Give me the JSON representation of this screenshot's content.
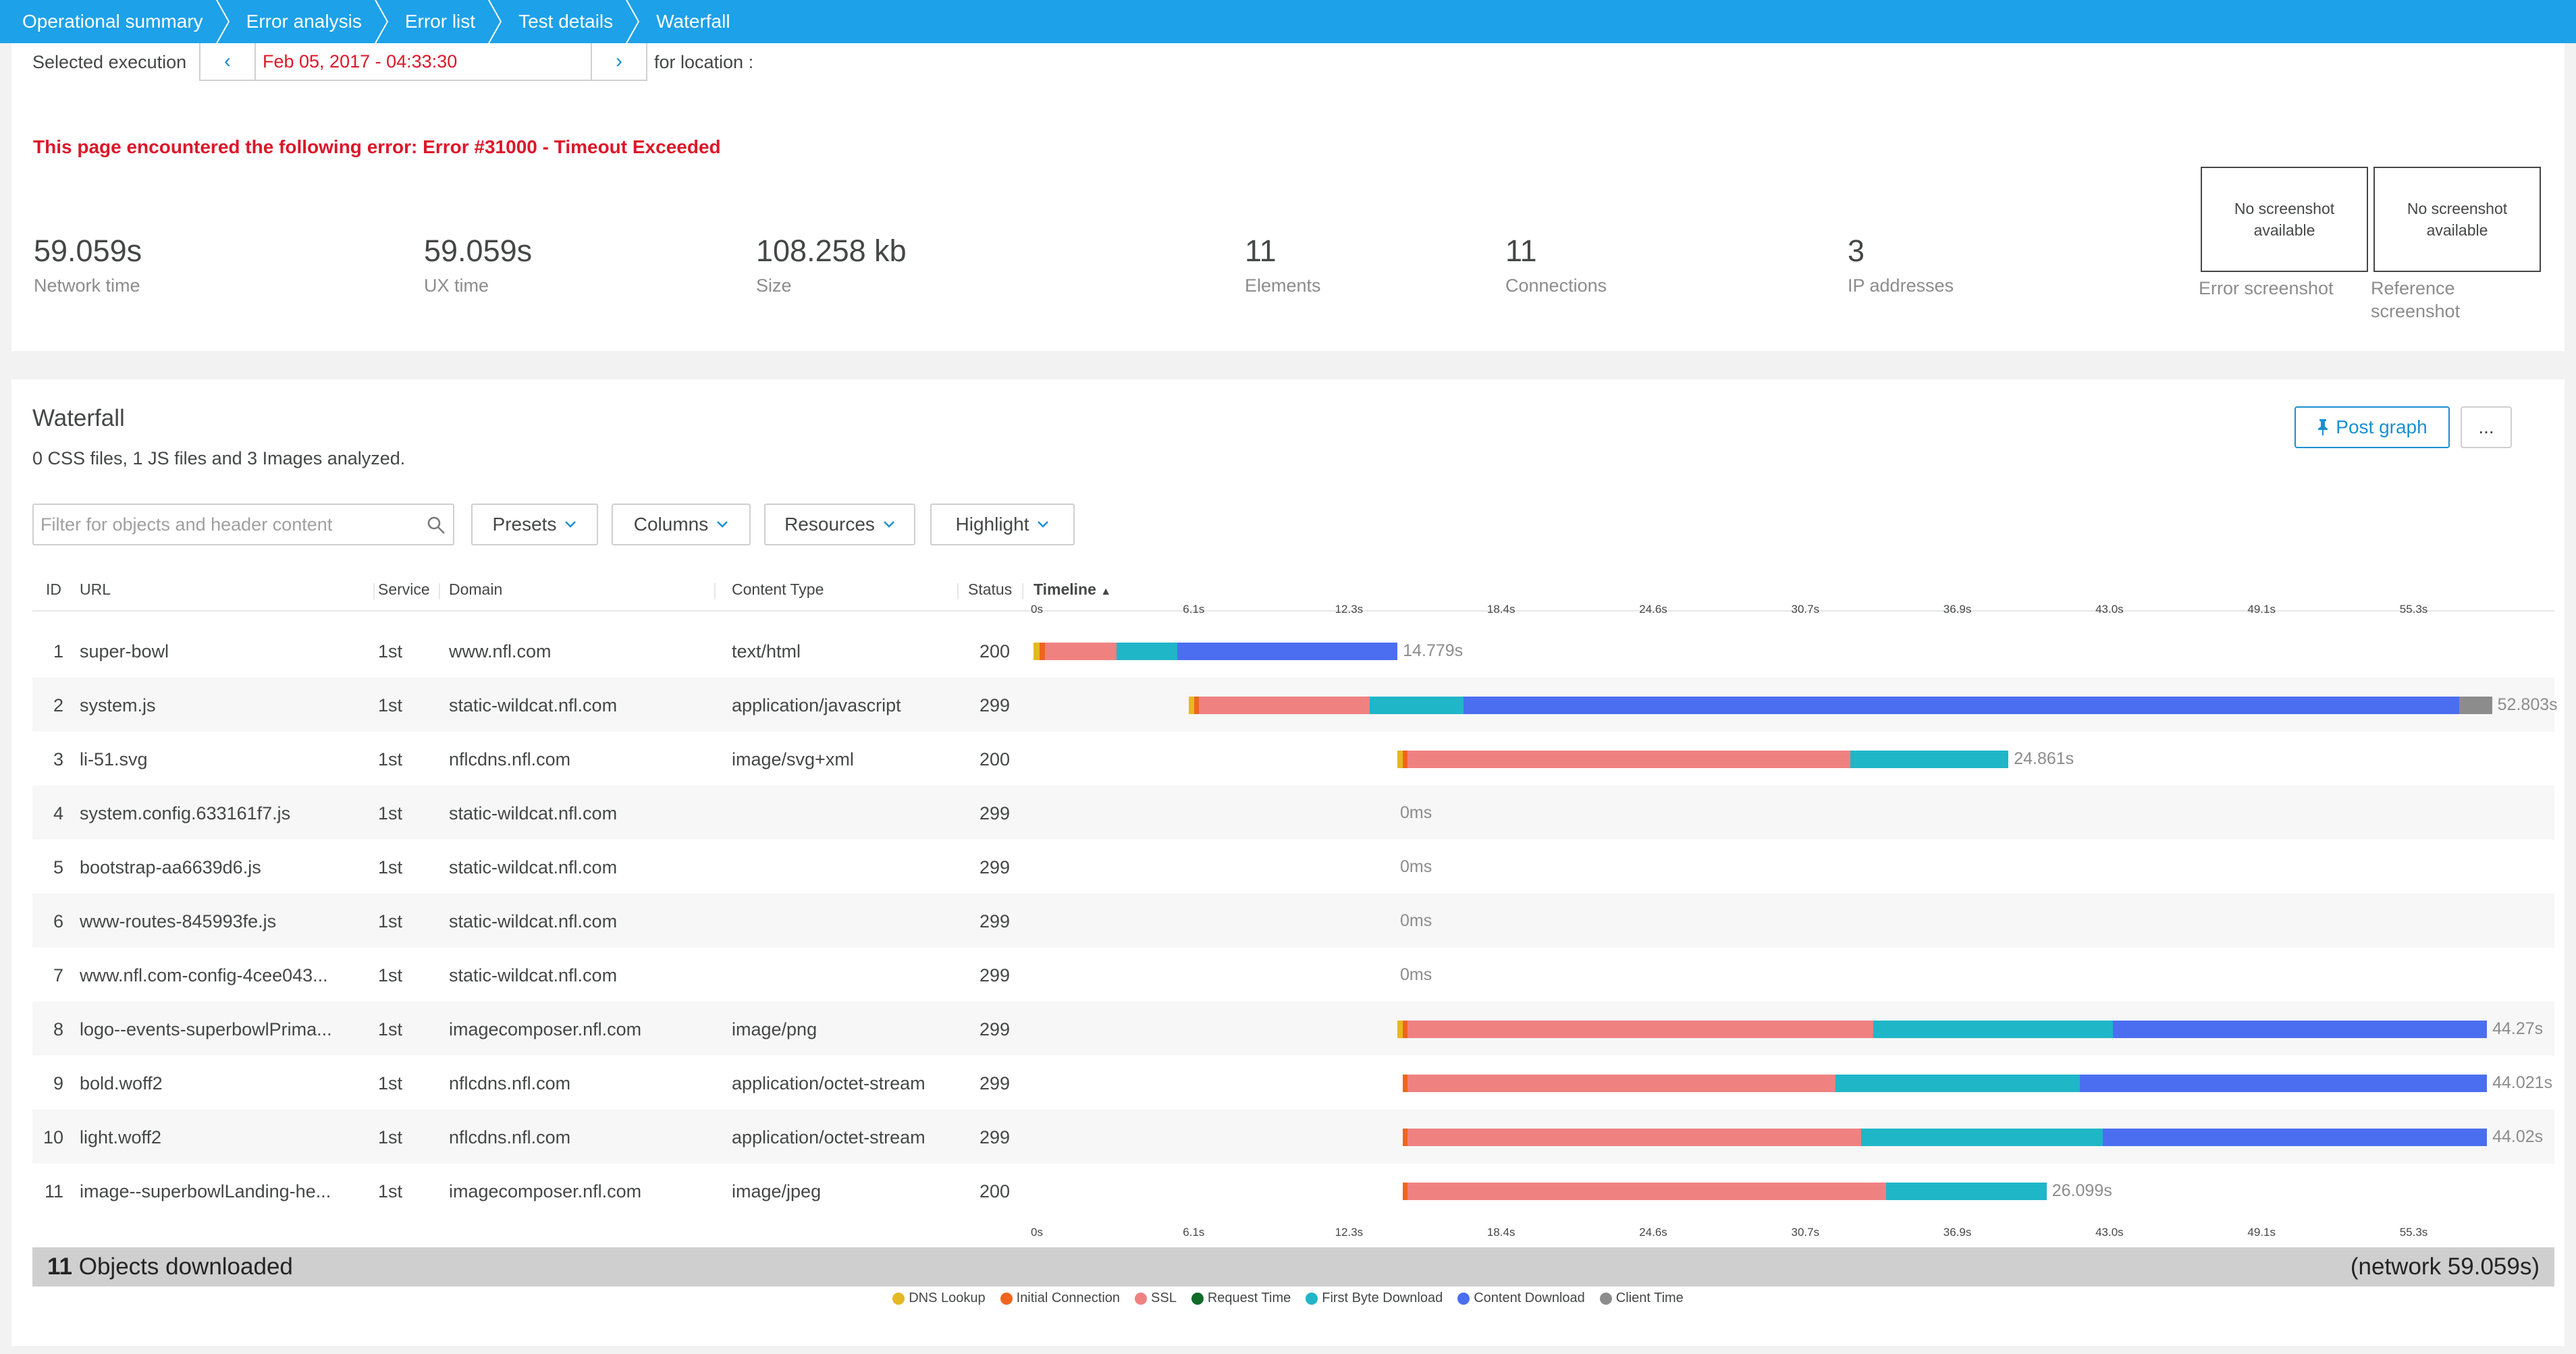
{
  "breadcrumb": [
    "Operational summary",
    "Error analysis",
    "Error list",
    "Test details",
    "Waterfall"
  ],
  "summary": {
    "selected_execution_label": "Selected execution",
    "date_value": "Feb 05, 2017 - 04:33:30",
    "for_location_label": "for location :",
    "error_message": "This page encountered the following error: Error #31000 - Timeout Exceeded",
    "metrics": [
      {
        "value": "59.059s",
        "label": "Network time"
      },
      {
        "value": "59.059s",
        "label": "UX time"
      },
      {
        "value": "108.258 kb",
        "label": "Size"
      },
      {
        "value": "11",
        "label": "Elements"
      },
      {
        "value": "11",
        "label": "Connections"
      },
      {
        "value": "3",
        "label": "IP addresses"
      }
    ],
    "screenshots": [
      {
        "placeholder": "No screenshot available",
        "label": "Error screenshot"
      },
      {
        "placeholder": "No screenshot available",
        "label": "Reference screenshot"
      }
    ]
  },
  "waterfall": {
    "title": "Waterfall",
    "subtitle": "0 CSS files, 1 JS files and 3 Images analyzed.",
    "post_graph_label": "Post graph",
    "more_label": "...",
    "filter_placeholder": "Filter for objects and header content",
    "dropdowns": [
      "Presets",
      "Columns",
      "Resources",
      "Highlight"
    ],
    "columns": [
      "ID",
      "URL",
      "Service",
      "Domain",
      "Content Type",
      "Status",
      "Timeline"
    ],
    "axis_max_s": 59.059,
    "ticks": [
      "0s",
      "6.1s",
      "12.3s",
      "18.4s",
      "24.6s",
      "30.7s",
      "36.9s",
      "43.0s",
      "49.1s",
      "55.3s"
    ],
    "phase_colors": {
      "dns": "#e4b923",
      "connect": "#ef651f",
      "ssl": "#f08181",
      "request": "#0f6b26",
      "first_byte": "#1fb6c8",
      "content": "#4b6ef0",
      "client": "#8c8c8c"
    },
    "rows": [
      {
        "id": "1",
        "url": "super-bowl",
        "service": "1st",
        "domain": "www.nfl.com",
        "content_type": "text/html",
        "status": "200",
        "duration": "14.779s",
        "phases": [
          [
            "dns",
            0.0,
            0.25
          ],
          [
            "connect",
            0.25,
            0.45
          ],
          [
            "ssl",
            0.45,
            3.25
          ],
          [
            "first_byte",
            3.25,
            5.65
          ],
          [
            "content",
            5.65,
            14.3
          ]
        ]
      },
      {
        "id": "2",
        "url": "system.js",
        "service": "1st",
        "domain": "static-wildcat.nfl.com",
        "content_type": "application/javascript",
        "status": "299",
        "duration": "52.803s",
        "phases": [
          [
            "dns",
            6.1,
            6.3
          ],
          [
            "connect",
            6.3,
            6.5
          ],
          [
            "ssl",
            6.5,
            13.2
          ],
          [
            "first_byte",
            13.2,
            16.9
          ],
          [
            "content",
            16.9,
            56.0
          ],
          [
            "client",
            56.0,
            57.3
          ]
        ]
      },
      {
        "id": "3",
        "url": "li-51.svg",
        "service": "1st",
        "domain": "nflcdns.nfl.com",
        "content_type": "image/svg+xml",
        "status": "200",
        "duration": "24.861s",
        "phases": [
          [
            "dns",
            14.3,
            14.5
          ],
          [
            "connect",
            14.5,
            14.7
          ],
          [
            "ssl",
            14.7,
            32.1
          ],
          [
            "first_byte",
            32.1,
            38.3
          ]
        ]
      },
      {
        "id": "4",
        "url": "system.config.633161f7.js",
        "service": "1st",
        "domain": "static-wildcat.nfl.com",
        "content_type": "",
        "status": "299",
        "duration": "0ms",
        "phases": [],
        "offset": 14.4
      },
      {
        "id": "5",
        "url": "bootstrap-aa6639d6.js",
        "service": "1st",
        "domain": "static-wildcat.nfl.com",
        "content_type": "",
        "status": "299",
        "duration": "0ms",
        "phases": [],
        "offset": 14.4
      },
      {
        "id": "6",
        "url": "www-routes-845993fe.js",
        "service": "1st",
        "domain": "static-wildcat.nfl.com",
        "content_type": "",
        "status": "299",
        "duration": "0ms",
        "phases": [],
        "offset": 14.4
      },
      {
        "id": "7",
        "url": "www.nfl.com-config-4cee043...",
        "service": "1st",
        "domain": "static-wildcat.nfl.com",
        "content_type": "",
        "status": "299",
        "duration": "0ms",
        "phases": [],
        "offset": 14.4
      },
      {
        "id": "8",
        "url": "logo--events-superbowlPrima...",
        "service": "1st",
        "domain": "imagecomposer.nfl.com",
        "content_type": "image/png",
        "status": "299",
        "duration": "44.27s",
        "phases": [
          [
            "dns",
            14.3,
            14.5
          ],
          [
            "connect",
            14.5,
            14.7
          ],
          [
            "ssl",
            14.7,
            33.0
          ],
          [
            "first_byte",
            33.0,
            42.4
          ],
          [
            "content",
            42.4,
            57.1
          ]
        ]
      },
      {
        "id": "9",
        "url": "bold.woff2",
        "service": "1st",
        "domain": "nflcdns.nfl.com",
        "content_type": "application/octet-stream",
        "status": "299",
        "duration": "44.021s",
        "phases": [
          [
            "connect",
            14.5,
            14.7
          ],
          [
            "ssl",
            14.7,
            31.5
          ],
          [
            "first_byte",
            31.5,
            41.1
          ],
          [
            "content",
            41.1,
            57.1
          ]
        ]
      },
      {
        "id": "10",
        "url": "light.woff2",
        "service": "1st",
        "domain": "nflcdns.nfl.com",
        "content_type": "application/octet-stream",
        "status": "299",
        "duration": "44.02s",
        "phases": [
          [
            "connect",
            14.5,
            14.7
          ],
          [
            "ssl",
            14.7,
            32.5
          ],
          [
            "first_byte",
            32.5,
            42.0
          ],
          [
            "content",
            42.0,
            57.1
          ]
        ]
      },
      {
        "id": "11",
        "url": "image--superbowlLanding-he...",
        "service": "1st",
        "domain": "imagecomposer.nfl.com",
        "content_type": "image/jpeg",
        "status": "200",
        "duration": "26.099s",
        "phases": [
          [
            "connect",
            14.5,
            14.7
          ],
          [
            "ssl",
            14.7,
            33.5
          ],
          [
            "first_byte",
            33.5,
            39.8
          ]
        ]
      }
    ],
    "footer": {
      "count": "11",
      "count_label": "Objects downloaded",
      "network": "(network 59.059s)"
    },
    "legend": [
      {
        "key": "dns",
        "label": "DNS Lookup"
      },
      {
        "key": "connect",
        "label": "Initial Connection"
      },
      {
        "key": "ssl",
        "label": "SSL"
      },
      {
        "key": "request",
        "label": "Request Time"
      },
      {
        "key": "first_byte",
        "label": "First Byte Download"
      },
      {
        "key": "content",
        "label": "Content Download"
      },
      {
        "key": "client",
        "label": "Client Time"
      }
    ]
  }
}
